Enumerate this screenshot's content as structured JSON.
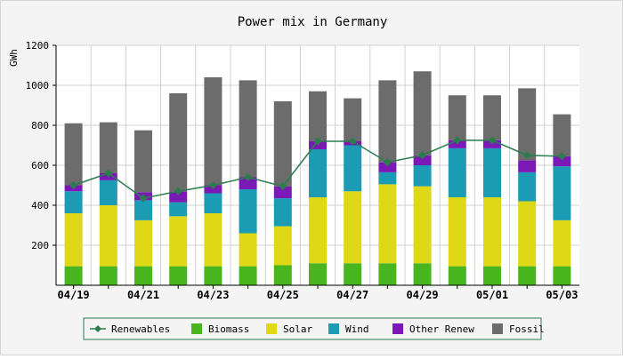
{
  "chart_data": {
    "type": "bar",
    "title": "Power mix in Germany",
    "ylabel": "GWh",
    "xlabel": "",
    "ylim": [
      0,
      1200
    ],
    "yticks": [
      200,
      400,
      600,
      800,
      1000,
      1200
    ],
    "categories": [
      "04/19",
      "04/20",
      "04/21",
      "04/22",
      "04/23",
      "04/24",
      "04/25",
      "04/26",
      "04/27",
      "04/28",
      "04/29",
      "04/30",
      "05/01",
      "05/02",
      "05/03"
    ],
    "xtick_labels": [
      "04/19",
      "04/21",
      "04/23",
      "04/25",
      "04/27",
      "04/29",
      "05/01",
      "05/03"
    ],
    "grid": true,
    "legend_position": "bottom",
    "stacked": true,
    "series": [
      {
        "name": "Biomass",
        "kind": "bar",
        "color": "#49b51f",
        "values": [
          95,
          95,
          95,
          95,
          95,
          95,
          100,
          110,
          110,
          110,
          110,
          95,
          95,
          95,
          95
        ]
      },
      {
        "name": "Solar",
        "kind": "bar",
        "color": "#dfd816",
        "values": [
          265,
          305,
          230,
          250,
          265,
          165,
          195,
          330,
          360,
          395,
          385,
          345,
          345,
          325,
          230
        ]
      },
      {
        "name": "Wind",
        "kind": "bar",
        "color": "#1c9bb4",
        "values": [
          110,
          125,
          100,
          70,
          100,
          220,
          140,
          240,
          230,
          60,
          105,
          245,
          245,
          145,
          270
        ]
      },
      {
        "name": "Other Renew",
        "kind": "bar",
        "color": "#7b19b6",
        "values": [
          30,
          35,
          40,
          55,
          40,
          60,
          60,
          40,
          20,
          50,
          50,
          40,
          40,
          60,
          50
        ]
      },
      {
        "name": "Fossil",
        "kind": "bar",
        "color": "#6c6c6c",
        "values": [
          310,
          255,
          310,
          490,
          540,
          485,
          425,
          250,
          215,
          410,
          420,
          225,
          225,
          360,
          210
        ]
      },
      {
        "name": "Renewables",
        "kind": "line",
        "color": "#2b7d4e",
        "values": [
          500,
          560,
          435,
          470,
          500,
          540,
          495,
          720,
          720,
          615,
          650,
          725,
          725,
          650,
          645
        ]
      }
    ]
  },
  "legend": {
    "items": [
      {
        "label": "Renewables",
        "color": "#2b7d4e",
        "kind": "line"
      },
      {
        "label": "Biomass",
        "color": "#49b51f",
        "kind": "swatch"
      },
      {
        "label": "Solar",
        "color": "#dfd816",
        "kind": "swatch"
      },
      {
        "label": "Wind",
        "color": "#1c9bb4",
        "kind": "swatch"
      },
      {
        "label": "Other Renew",
        "color": "#7b19b6",
        "kind": "swatch"
      },
      {
        "label": "Fossil",
        "color": "#6c6c6c",
        "kind": "swatch"
      }
    ]
  },
  "colors": {
    "plot_background": "#ffffff",
    "page_background": "#f4f4f4",
    "grid": "#d0d0d0",
    "legend_border": "#2b7d4e"
  }
}
